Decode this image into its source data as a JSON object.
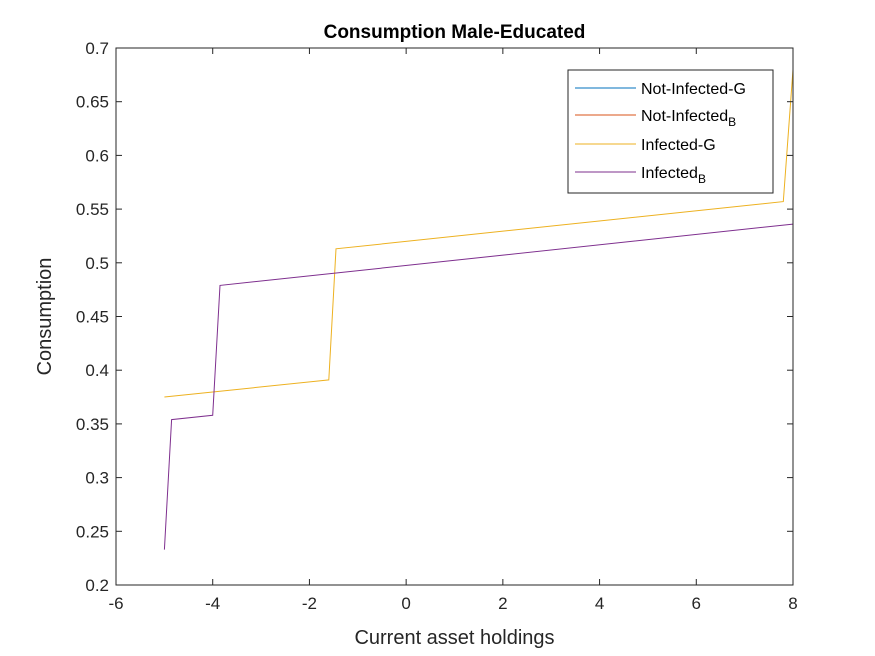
{
  "chart_data": {
    "type": "line",
    "title": "Consumption Male-Educated",
    "xlabel": "Current asset holdings",
    "ylabel": "Consumption",
    "xlim": [
      -6,
      8
    ],
    "ylim": [
      0.2,
      0.7
    ],
    "xticks": [
      -6,
      -4,
      -2,
      0,
      2,
      4,
      6,
      8
    ],
    "xtick_labels": [
      "-6",
      "-4",
      "-2",
      "0",
      "2",
      "4",
      "6",
      "8"
    ],
    "yticks": [
      0.2,
      0.25,
      0.3,
      0.35,
      0.4,
      0.45,
      0.5,
      0.55,
      0.6,
      0.65,
      0.7
    ],
    "ytick_labels": [
      "0.2",
      "0.25",
      "0.3",
      "0.35",
      "0.4",
      "0.45",
      "0.5",
      "0.55",
      "0.6",
      "0.65",
      "0.7"
    ],
    "grid": false,
    "legend_position": "top-right",
    "series": [
      {
        "name": "Not-Infected-G",
        "legend_main": "Not-Infected-G",
        "legend_sub": "",
        "color": "#0072BD",
        "x": [],
        "y": []
      },
      {
        "name": "Not-Infected_B",
        "legend_main": "Not-Infected",
        "legend_sub": "B",
        "color": "#D95319",
        "x": [],
        "y": []
      },
      {
        "name": "Infected-G",
        "legend_main": "Infected-G",
        "legend_sub": "",
        "color": "#EDB120",
        "x": [
          -5.0,
          -1.6,
          -1.45,
          7.8,
          8.0
        ],
        "y": [
          0.375,
          0.391,
          0.513,
          0.557,
          0.68
        ]
      },
      {
        "name": "Infected_B",
        "legend_main": "Infected",
        "legend_sub": "B",
        "color": "#7E2F8E",
        "x": [
          -5.0,
          -4.85,
          -4.0,
          -3.85,
          8.0
        ],
        "y": [
          0.233,
          0.354,
          0.358,
          0.479,
          0.536
        ]
      }
    ]
  }
}
